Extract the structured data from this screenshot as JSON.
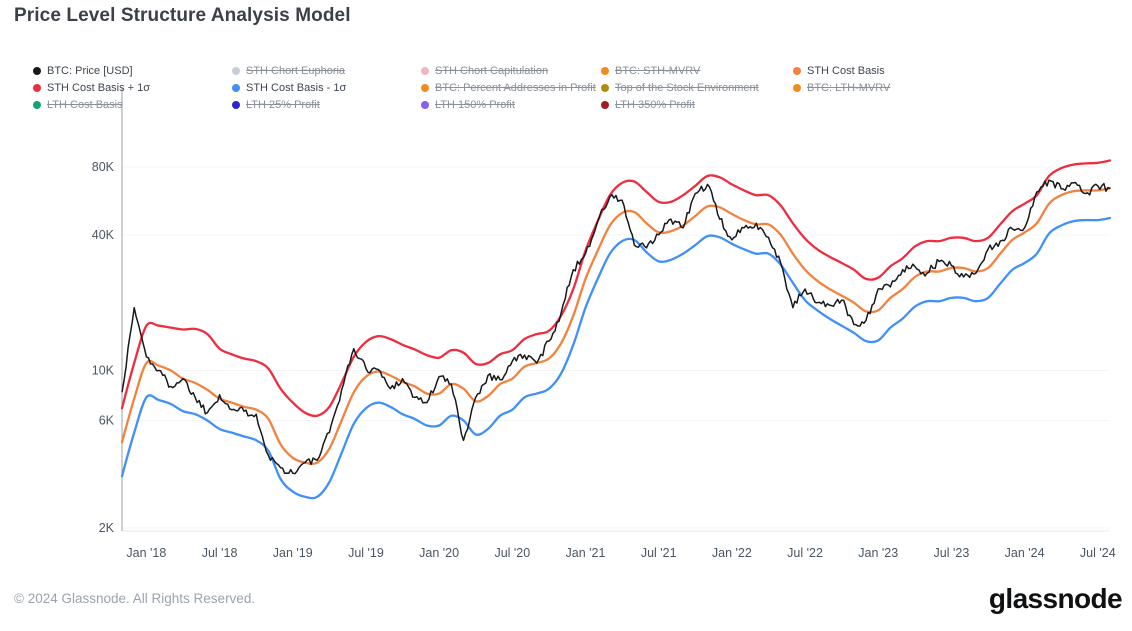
{
  "header": {
    "title": "Price Level Structure Analysis Model"
  },
  "footer": {
    "copyright": "© 2024 Glassnode. All Rights Reserved.",
    "brand": "glassnode"
  },
  "legend": {
    "columns": [
      {
        "items": [
          {
            "label": "BTC: Price [USD]",
            "color": "#17181c",
            "active": true
          },
          {
            "label": "STH Cost Basis + 1σ",
            "color": "#ed2d40",
            "active": true
          },
          {
            "label": "LTH Cost Basis",
            "color": "#16a279",
            "active": false
          }
        ]
      },
      {
        "items": [
          {
            "label": "STH Chort Euphoria",
            "color": "#c9ced6",
            "active": false
          },
          {
            "label": "STH Cost Basis - 1σ",
            "color": "#4090f7",
            "active": true
          },
          {
            "label": "LTH 25% Profit",
            "color": "#2f25cf",
            "active": false
          }
        ]
      },
      {
        "items": [
          {
            "label": "STH Chort Capitulation",
            "color": "#f2b6c3",
            "active": false
          },
          {
            "label": "BTC: Percent Addresses in Profit",
            "color": "#ef8e1f",
            "active": false
          },
          {
            "label": "LTH 150% Profit",
            "color": "#8662ea",
            "active": false
          }
        ]
      },
      {
        "items": [
          {
            "label": "BTC: STH-MVRV",
            "color": "#ef8e1f",
            "active": false
          },
          {
            "label": "Top of the Stock Environment",
            "color": "#af8d0e",
            "active": false
          },
          {
            "label": "LTH 350% Profit",
            "color": "#9e1d22",
            "active": false
          }
        ]
      },
      {
        "items": [
          {
            "label": "STH Cost Basis",
            "color": "#f2823e",
            "active": true
          },
          {
            "label": "BTC: LTH-MVRV",
            "color": "#ef8e1f",
            "active": false
          }
        ]
      }
    ]
  },
  "chart_data": {
    "type": "line",
    "title": "Price Level Structure Analysis Model",
    "y_axis": {
      "scale": "log",
      "unit": "USD",
      "lim": [
        2000,
        95000
      ],
      "ticks": [
        {
          "label": "80K",
          "value": 80000
        },
        {
          "label": "40K",
          "value": 40000
        },
        {
          "label": "10K",
          "value": 10000
        },
        {
          "label": "6K",
          "value": 6000
        },
        {
          "label": "2K",
          "value": 2000
        }
      ]
    },
    "x_ticks": [
      {
        "label": "Jan '18",
        "month": "2018-01"
      },
      {
        "label": "Jul '18",
        "month": "2018-07"
      },
      {
        "label": "Jan '19",
        "month": "2019-01"
      },
      {
        "label": "Jul '19",
        "month": "2019-07"
      },
      {
        "label": "Jan '20",
        "month": "2020-01"
      },
      {
        "label": "Jul '20",
        "month": "2020-07"
      },
      {
        "label": "Jan '21",
        "month": "2021-01"
      },
      {
        "label": "Jul '21",
        "month": "2021-07"
      },
      {
        "label": "Jan '22",
        "month": "2022-01"
      },
      {
        "label": "Jul '22",
        "month": "2022-07"
      },
      {
        "label": "Jan '23",
        "month": "2023-01"
      },
      {
        "label": "Jul '23",
        "month": "2023-07"
      },
      {
        "label": "Jan '24",
        "month": "2024-01"
      },
      {
        "label": "Jul '24",
        "month": "2024-07"
      }
    ],
    "months": [
      "2017-11",
      "2017-12",
      "2018-01",
      "2018-02",
      "2018-03",
      "2018-04",
      "2018-05",
      "2018-06",
      "2018-07",
      "2018-08",
      "2018-09",
      "2018-10",
      "2018-11",
      "2018-12",
      "2019-01",
      "2019-02",
      "2019-03",
      "2019-04",
      "2019-05",
      "2019-06",
      "2019-07",
      "2019-08",
      "2019-09",
      "2019-10",
      "2019-11",
      "2019-12",
      "2020-01",
      "2020-02",
      "2020-03",
      "2020-04",
      "2020-05",
      "2020-06",
      "2020-07",
      "2020-08",
      "2020-09",
      "2020-10",
      "2020-11",
      "2020-12",
      "2021-01",
      "2021-02",
      "2021-03",
      "2021-04",
      "2021-05",
      "2021-06",
      "2021-07",
      "2021-08",
      "2021-09",
      "2021-10",
      "2021-11",
      "2021-12",
      "2022-01",
      "2022-02",
      "2022-03",
      "2022-04",
      "2022-05",
      "2022-06",
      "2022-07",
      "2022-08",
      "2022-09",
      "2022-10",
      "2022-11",
      "2022-12",
      "2023-01",
      "2023-02",
      "2023-03",
      "2023-04",
      "2023-05",
      "2023-06",
      "2023-07",
      "2023-08",
      "2023-09",
      "2023-10",
      "2023-11",
      "2023-12",
      "2024-01",
      "2024-02",
      "2024-03",
      "2024-04",
      "2024-05",
      "2024-06",
      "2024-07",
      "2024-08"
    ],
    "series": [
      {
        "name": "STH Cost Basis + 1σ",
        "color": "#ed2d40",
        "style": "smooth",
        "values": [
          6800,
          10800,
          15800,
          15800,
          15500,
          15200,
          15300,
          14500,
          12500,
          11800,
          11300,
          11000,
          10200,
          8300,
          7200,
          6500,
          6300,
          6900,
          8800,
          11500,
          13400,
          14200,
          13800,
          13000,
          12400,
          11700,
          11400,
          12300,
          12000,
          10700,
          10800,
          11800,
          12300,
          13800,
          14500,
          15000,
          17500,
          23000,
          34000,
          46000,
          60000,
          68000,
          69000,
          62000,
          56000,
          56000,
          60000,
          66000,
          73000,
          72000,
          67000,
          63000,
          60000,
          60000,
          54000,
          45000,
          38500,
          34500,
          32000,
          30000,
          28000,
          25500,
          25800,
          29000,
          31500,
          35500,
          37500,
          37500,
          38800,
          38800,
          37500,
          38800,
          44500,
          51000,
          55000,
          60000,
          73000,
          79000,
          82000,
          83000,
          83500,
          85500
        ]
      },
      {
        "name": "STH Cost Basis",
        "color": "#f2823e",
        "style": "smooth",
        "values": [
          4800,
          7500,
          10800,
          10500,
          10000,
          9200,
          8800,
          8200,
          7500,
          7200,
          6900,
          6700,
          6100,
          4700,
          4100,
          3900,
          3900,
          4500,
          6000,
          8000,
          9400,
          9900,
          9500,
          8900,
          8500,
          7900,
          7900,
          8700,
          8300,
          7300,
          7700,
          8700,
          9200,
          10400,
          10800,
          11300,
          13200,
          17500,
          25500,
          34000,
          44000,
          50000,
          50500,
          45000,
          41000,
          41500,
          44000,
          48500,
          53500,
          53000,
          49500,
          46500,
          44500,
          44500,
          40000,
          33000,
          28000,
          25000,
          23000,
          21500,
          20000,
          18300,
          18500,
          21000,
          23000,
          26000,
          27500,
          27500,
          28500,
          28500,
          27500,
          28500,
          33000,
          38000,
          41000,
          45000,
          55000,
          60000,
          62500,
          63000,
          63000,
          64500
        ]
      },
      {
        "name": "STH Cost Basis - 1σ",
        "color": "#4090f7",
        "style": "smooth",
        "values": [
          3400,
          5300,
          7600,
          7400,
          7100,
          6600,
          6400,
          6000,
          5500,
          5300,
          5100,
          4900,
          4400,
          3300,
          2900,
          2750,
          2750,
          3200,
          4300,
          5800,
          6800,
          7200,
          6900,
          6400,
          6100,
          5700,
          5700,
          6300,
          6000,
          5200,
          5500,
          6300,
          6700,
          7600,
          7900,
          8300,
          9700,
          13000,
          19000,
          25500,
          33000,
          37500,
          38000,
          33500,
          30500,
          31000,
          33000,
          36000,
          39500,
          39000,
          36500,
          34500,
          33000,
          33000,
          29500,
          24500,
          20500,
          18500,
          17000,
          15800,
          14700,
          13500,
          13600,
          15500,
          17000,
          19200,
          20300,
          20300,
          21000,
          21000,
          20300,
          21000,
          24300,
          28000,
          30000,
          33000,
          40500,
          44000,
          46000,
          46500,
          46500,
          47500
        ]
      },
      {
        "name": "BTC: Price [USD]",
        "color": "#17181c",
        "style": "volatile",
        "values": [
          8000,
          19000,
          11500,
          10000,
          8500,
          9200,
          7600,
          6500,
          7800,
          6700,
          6600,
          6400,
          4200,
          3700,
          3500,
          3900,
          4000,
          5300,
          8200,
          12500,
          10200,
          10100,
          8300,
          9200,
          7600,
          7200,
          9400,
          8700,
          4900,
          7600,
          9500,
          9100,
          11000,
          11700,
          10800,
          13500,
          18000,
          28000,
          33000,
          46000,
          59000,
          57000,
          36000,
          35000,
          40000,
          47000,
          43000,
          61000,
          67000,
          47000,
          38000,
          43000,
          45000,
          39000,
          30000,
          19000,
          23000,
          20000,
          19500,
          20500,
          16000,
          16700,
          23000,
          23500,
          28000,
          29000,
          27000,
          30500,
          29200,
          26000,
          27000,
          34500,
          37500,
          42500,
          43000,
          62000,
          70000,
          64000,
          68000,
          61000,
          66000,
          64000
        ]
      }
    ],
    "hidden_series": [
      "STH Chort Euphoria",
      "STH Chort Capitulation",
      "BTC: STH-MVRV",
      "LTH Cost Basis",
      "BTC: Percent Addresses in Profit",
      "Top of the Stock Environment",
      "BTC: LTH-MVRV",
      "LTH 25% Profit",
      "LTH 150% Profit",
      "LTH 350% Profit"
    ]
  }
}
